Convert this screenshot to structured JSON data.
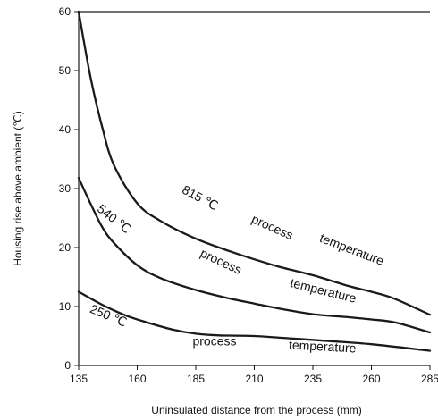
{
  "chart_data": {
    "type": "line",
    "title": "",
    "xlabel": "Uninsulated distance from the process (mm)",
    "ylabel": "Housing rise above ambient (℃)",
    "xlim": [
      135,
      285
    ],
    "ylim": [
      0,
      60
    ],
    "xticks": [
      "135",
      "160",
      "185",
      "210",
      "235",
      "260",
      "285"
    ],
    "yticks": [
      "0",
      "10",
      "20",
      "30",
      "40",
      "50",
      "60"
    ],
    "grid": false,
    "colors": {
      "line": "#1a1a1a",
      "axis": "#1a1a1a",
      "text": "#111111"
    },
    "series": [
      {
        "x": [
          135,
          140,
          145,
          150,
          160,
          170,
          185,
          200,
          210,
          220,
          235,
          250,
          260,
          270,
          285
        ],
        "y": [
          60,
          49,
          40.5,
          34,
          27.5,
          24.5,
          21.5,
          19.3,
          18,
          16.8,
          15.3,
          13.5,
          12.5,
          11.3,
          8.6
        ]
      },
      {
        "x": [
          135,
          140,
          145,
          150,
          160,
          170,
          185,
          200,
          210,
          220,
          235,
          250,
          260,
          270,
          285
        ],
        "y": [
          31.8,
          27.5,
          23.5,
          20.8,
          17,
          14.8,
          12.8,
          11.3,
          10.5,
          9.7,
          8.7,
          8.2,
          7.8,
          7.3,
          5.6
        ]
      },
      {
        "x": [
          135,
          145,
          155,
          165,
          175,
          185,
          195,
          210,
          225,
          240,
          260,
          285
        ],
        "y": [
          12.5,
          10.3,
          8.5,
          7.2,
          6.1,
          5.4,
          5.1,
          5,
          4.6,
          4.2,
          3.6,
          2.5
        ]
      }
    ],
    "annotations": [
      {
        "words": [
          "815 ℃",
          "process",
          "temperature"
        ]
      },
      {
        "words": [
          "540 ℃",
          "process",
          "temperature"
        ]
      },
      {
        "words": [
          "250 ℃",
          "process",
          "temperature"
        ]
      }
    ]
  }
}
